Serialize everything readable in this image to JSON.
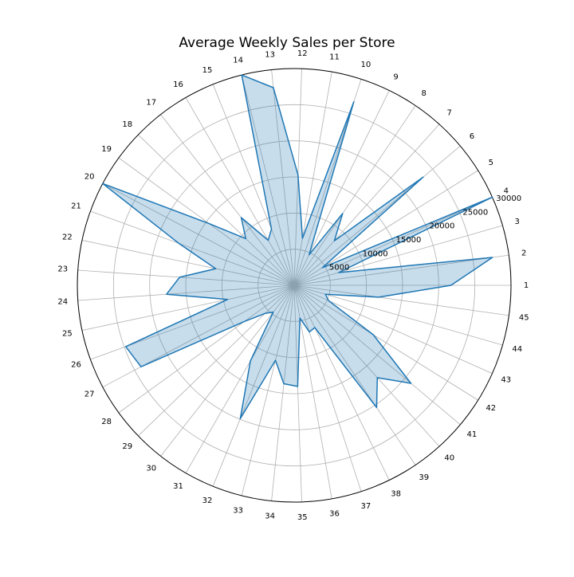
{
  "chart_data": {
    "type": "radar",
    "title": "Average Weekly Sales per Store",
    "categories": [
      "1",
      "2",
      "3",
      "4",
      "5",
      "6",
      "7",
      "8",
      "9",
      "10",
      "11",
      "12",
      "13",
      "14",
      "15",
      "16",
      "17",
      "18",
      "19",
      "20",
      "21",
      "22",
      "23",
      "24",
      "25",
      "26",
      "27",
      "28",
      "29",
      "30",
      "31",
      "32",
      "33",
      "34",
      "35",
      "36",
      "37",
      "38",
      "39",
      "40",
      "41",
      "42",
      "43",
      "44",
      "45"
    ],
    "series": [
      {
        "values": [
          21700,
          27700,
          6400,
          30000,
          4600,
          23300,
          8300,
          12000,
          4700,
          26700,
          6600,
          15300,
          27500,
          30000,
          8400,
          7200,
          11900,
          9300,
          14500,
          30000,
          17000,
          11100,
          15900,
          17700,
          9400,
          24800,
          24000,
          8500,
          5600,
          4700,
          12100,
          19900,
          10700,
          13700,
          14000,
          4600,
          6800,
          6500,
          20400,
          17200,
          21100,
          12900,
          5200,
          4500,
          11800
        ]
      }
    ],
    "rlim": [
      0,
      30000
    ],
    "r_ticks": [
      "5000",
      "10000",
      "15000",
      "20000",
      "25000",
      "30000"
    ],
    "grid": true,
    "line_color": "#1f77b4",
    "fill_color": "#1f77b4"
  }
}
